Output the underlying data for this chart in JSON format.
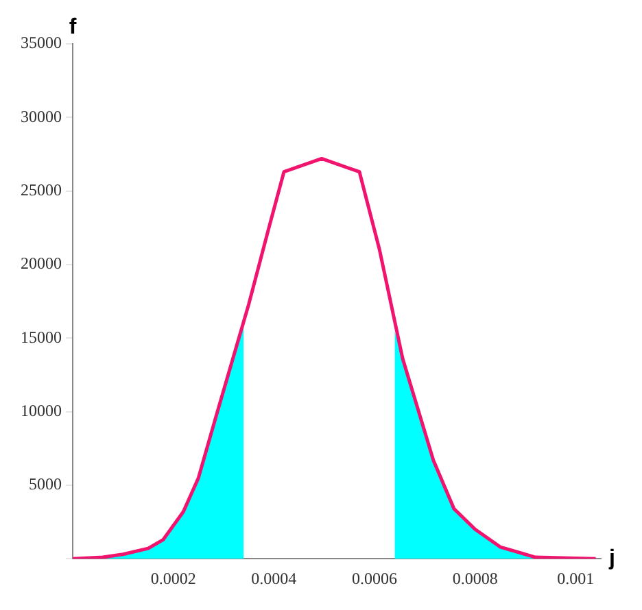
{
  "chart_data": {
    "type": "line",
    "xlabel": "j",
    "ylabel": "f",
    "xlim": [
      0,
      0.00105
    ],
    "xticks": [
      {
        "value": 0,
        "label": null
      },
      0.0002,
      0.0004,
      0.0006,
      0.0008,
      0.001
    ],
    "ylim": [
      0,
      35000
    ],
    "yticks": [
      {
        "value": 0,
        "label": null
      },
      5000,
      10000,
      15000,
      20000,
      25000,
      30000,
      35000
    ],
    "grid": false,
    "legend": false,
    "marker": "none",
    "line_style": "solid",
    "series": [
      {
        "type": "area",
        "color": "#00ffff",
        "x": [
          0,
          6e-05,
          0.0001,
          0.00015,
          0.00018,
          0.00022,
          0.00025,
          0.000286,
          0.00034
        ],
        "values": [
          0,
          100,
          300,
          700,
          1300,
          3200,
          5500,
          9800,
          16000
        ]
      },
      {
        "type": "area",
        "color": "#00ffff",
        "x": [
          0.00064,
          0.000656,
          0.000717,
          0.000758,
          0.0008,
          0.00085,
          0.00092,
          0.00104
        ],
        "values": [
          15500,
          13600,
          6700,
          3400,
          2000,
          800,
          100,
          0
        ]
      },
      {
        "type": "line",
        "color": "#f0146e",
        "x": [
          0,
          6e-05,
          0.0001,
          0.00015,
          0.00018,
          0.00022,
          0.00025,
          0.000286,
          0.00035,
          0.00039,
          0.00042,
          0.000495,
          0.00057,
          0.00061,
          0.000656,
          0.000717,
          0.000758,
          0.0008,
          0.00085,
          0.00092,
          0.00104
        ],
        "values": [
          0,
          100,
          300,
          700,
          1300,
          3200,
          5500,
          9800,
          17300,
          22500,
          26300,
          27200,
          26300,
          21000,
          13600,
          6700,
          3400,
          2000,
          800,
          100,
          0
        ]
      }
    ]
  }
}
